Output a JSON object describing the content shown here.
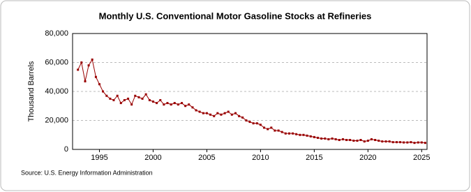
{
  "chart_data": {
    "type": "line",
    "title": "Monthly U.S. Conventional Motor Gasoline Stocks at Refineries",
    "y_label": "Thousand Barrels",
    "source": "Source: U.S. Energy Information Administration",
    "x": [
      1993.0,
      1993.33,
      1993.67,
      1994.0,
      1994.33,
      1994.67,
      1995.0,
      1995.33,
      1995.67,
      1996.0,
      1996.33,
      1996.67,
      1997.0,
      1997.33,
      1997.67,
      1998.0,
      1998.33,
      1998.67,
      1999.0,
      1999.33,
      1999.67,
      2000.0,
      2000.33,
      2000.67,
      2001.0,
      2001.33,
      2001.67,
      2002.0,
      2002.33,
      2002.67,
      2003.0,
      2003.33,
      2003.67,
      2004.0,
      2004.33,
      2004.67,
      2005.0,
      2005.33,
      2005.67,
      2006.0,
      2006.33,
      2006.67,
      2007.0,
      2007.33,
      2007.67,
      2008.0,
      2008.33,
      2008.67,
      2009.0,
      2009.33,
      2009.67,
      2010.0,
      2010.33,
      2010.67,
      2011.0,
      2011.33,
      2011.67,
      2012.0,
      2012.33,
      2012.67,
      2013.0,
      2013.33,
      2013.67,
      2014.0,
      2014.33,
      2014.67,
      2015.0,
      2015.33,
      2015.67,
      2016.0,
      2016.33,
      2016.67,
      2017.0,
      2017.33,
      2017.67,
      2018.0,
      2018.33,
      2018.67,
      2019.0,
      2019.33,
      2019.67,
      2020.0,
      2020.33,
      2020.67,
      2021.0,
      2021.33,
      2021.67,
      2022.0,
      2022.33,
      2022.67,
      2023.0,
      2023.33,
      2023.67,
      2024.0,
      2024.33,
      2024.67,
      2025.0,
      2025.33
    ],
    "series": [
      {
        "name": "Conventional Motor Gasoline Stocks at Refineries",
        "color": "#990000",
        "values": [
          55000,
          60000,
          47000,
          58000,
          62000,
          50000,
          45000,
          40000,
          37000,
          35000,
          34000,
          37000,
          32000,
          34000,
          35000,
          31000,
          37000,
          36000,
          35000,
          38000,
          34000,
          33000,
          32000,
          34000,
          31000,
          32000,
          31000,
          32000,
          31000,
          32000,
          30000,
          31000,
          29000,
          27000,
          26000,
          25000,
          25000,
          24000,
          23000,
          25000,
          24000,
          25000,
          26000,
          24000,
          25000,
          23000,
          22000,
          20000,
          19000,
          18000,
          18000,
          17000,
          15000,
          14000,
          15000,
          13000,
          13000,
          12000,
          11000,
          11000,
          11000,
          10500,
          10000,
          10000,
          9500,
          9000,
          8500,
          8000,
          7500,
          7500,
          7000,
          7500,
          7000,
          6500,
          7000,
          6500,
          6500,
          6000,
          6000,
          6500,
          5500,
          6000,
          7000,
          6500,
          6000,
          5500,
          5500,
          5500,
          5000,
          5000,
          5000,
          4800,
          4800,
          5000,
          4500,
          4800,
          4800,
          4500
        ]
      }
    ],
    "xlim": [
      1992.5,
      2025.5
    ],
    "xticks": [
      1995,
      2000,
      2005,
      2010,
      2015,
      2020,
      2025
    ],
    "ylim": [
      0,
      80000
    ],
    "yticks": [
      0,
      {
        "value": 20000,
        "label": "20,000"
      },
      {
        "value": 40000,
        "label": "40,000"
      },
      {
        "value": 60000,
        "label": "60,000"
      },
      {
        "value": 80000,
        "label": "80,000"
      }
    ],
    "grid": true
  }
}
